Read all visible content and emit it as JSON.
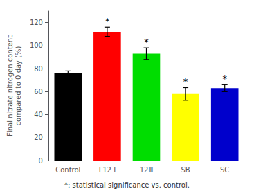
{
  "chart_data": {
    "type": "bar",
    "categories": [
      "Control",
      "L12 I",
      "12Ⅲ",
      "SB",
      "SC"
    ],
    "values": [
      76,
      112,
      93,
      58,
      63
    ],
    "errors": [
      2.0,
      4.0,
      5.0,
      5.5,
      3.0
    ],
    "colors": [
      "#000000",
      "#ff0000",
      "#00dd00",
      "#ffff00",
      "#0000cc"
    ],
    "ylabel": "Final nitrate nitrogen content\ncompared to 0 day (%)",
    "ylim": [
      0,
      130
    ],
    "yticks": [
      0,
      20,
      40,
      60,
      80,
      100,
      120
    ],
    "grid": false,
    "annotations": [
      {
        "category": "L12 I",
        "text": "*"
      },
      {
        "category": "12Ⅲ",
        "text": "*"
      },
      {
        "category": "SB",
        "text": "*"
      },
      {
        "category": "SC",
        "text": "*"
      },
      {
        "text": "*: statistical significance vs. control."
      }
    ]
  }
}
